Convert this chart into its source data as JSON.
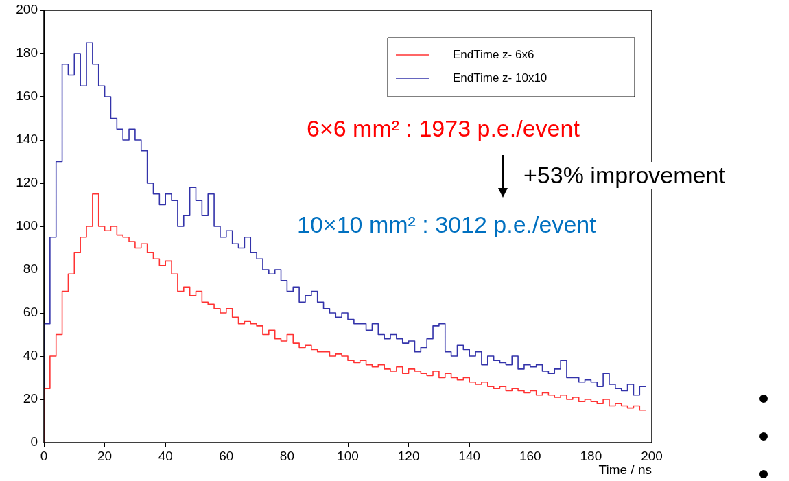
{
  "chart_data": {
    "type": "step",
    "xlabel": "Time / ns",
    "xlim": [
      0,
      200
    ],
    "xticks": [
      0,
      20,
      40,
      60,
      80,
      100,
      120,
      140,
      160,
      180,
      200
    ],
    "ylim": [
      0,
      200
    ],
    "yticks": [
      0,
      20,
      40,
      60,
      80,
      100,
      120,
      140,
      160,
      180,
      200
    ],
    "grid": false,
    "legend": "top right",
    "marker": "none",
    "x": [
      0,
      2,
      4,
      6,
      8,
      10,
      12,
      14,
      16,
      18,
      20,
      22,
      24,
      26,
      28,
      30,
      32,
      34,
      36,
      38,
      40,
      42,
      44,
      46,
      48,
      50,
      52,
      54,
      56,
      58,
      60,
      62,
      64,
      66,
      68,
      70,
      72,
      74,
      76,
      78,
      80,
      82,
      84,
      86,
      88,
      90,
      92,
      94,
      96,
      98,
      100,
      102,
      104,
      106,
      108,
      110,
      112,
      114,
      116,
      118,
      120,
      122,
      124,
      126,
      128,
      130,
      132,
      134,
      136,
      138,
      140,
      142,
      144,
      146,
      148,
      150,
      152,
      154,
      156,
      158,
      160,
      162,
      164,
      166,
      168,
      170,
      172,
      174,
      176,
      178,
      180,
      182,
      184,
      186,
      188,
      190,
      192,
      194,
      196,
      198
    ],
    "series": [
      {
        "name": "EndTime z- 6x6",
        "color": "#ff3333",
        "values": [
          0,
          25,
          40,
          50,
          70,
          78,
          88,
          95,
          100,
          115,
          100,
          98,
          100,
          96,
          95,
          93,
          90,
          92,
          88,
          85,
          82,
          84,
          78,
          70,
          72,
          68,
          70,
          65,
          64,
          62,
          60,
          62,
          58,
          55,
          56,
          55,
          54,
          50,
          52,
          48,
          47,
          50,
          46,
          44,
          45,
          43,
          42,
          42,
          40,
          41,
          40,
          38,
          37,
          38,
          36,
          35,
          36,
          34,
          33,
          35,
          32,
          34,
          33,
          32,
          31,
          33,
          30,
          32,
          30,
          29,
          30,
          28,
          27,
          28,
          26,
          25,
          26,
          24,
          25,
          24,
          23,
          24,
          22,
          23,
          22,
          21,
          22,
          20,
          21,
          19,
          20,
          19,
          18,
          20,
          17,
          18,
          17,
          16,
          17,
          15
        ]
      },
      {
        "name": "EndTime z- 10x10",
        "color": "#3333aa",
        "values": [
          0,
          55,
          95,
          130,
          175,
          170,
          180,
          165,
          185,
          175,
          165,
          160,
          150,
          145,
          140,
          145,
          140,
          135,
          120,
          115,
          110,
          115,
          112,
          100,
          105,
          118,
          112,
          105,
          115,
          100,
          95,
          98,
          92,
          90,
          95,
          88,
          85,
          80,
          78,
          80,
          75,
          70,
          72,
          65,
          68,
          70,
          65,
          62,
          60,
          58,
          60,
          57,
          55,
          55,
          52,
          55,
          50,
          48,
          50,
          48,
          46,
          47,
          42,
          44,
          48,
          54,
          55,
          42,
          40,
          45,
          43,
          40,
          42,
          36,
          40,
          38,
          37,
          36,
          40,
          34,
          36,
          35,
          36,
          33,
          32,
          34,
          38,
          30,
          30,
          28,
          29,
          28,
          26,
          32,
          27,
          25,
          24,
          27,
          22,
          26
        ]
      }
    ],
    "annotations": [
      "6×6 mm² : 1973 p.e./event",
      "+53% improvement",
      "10×10 mm² : 3012 p.e./event"
    ]
  }
}
